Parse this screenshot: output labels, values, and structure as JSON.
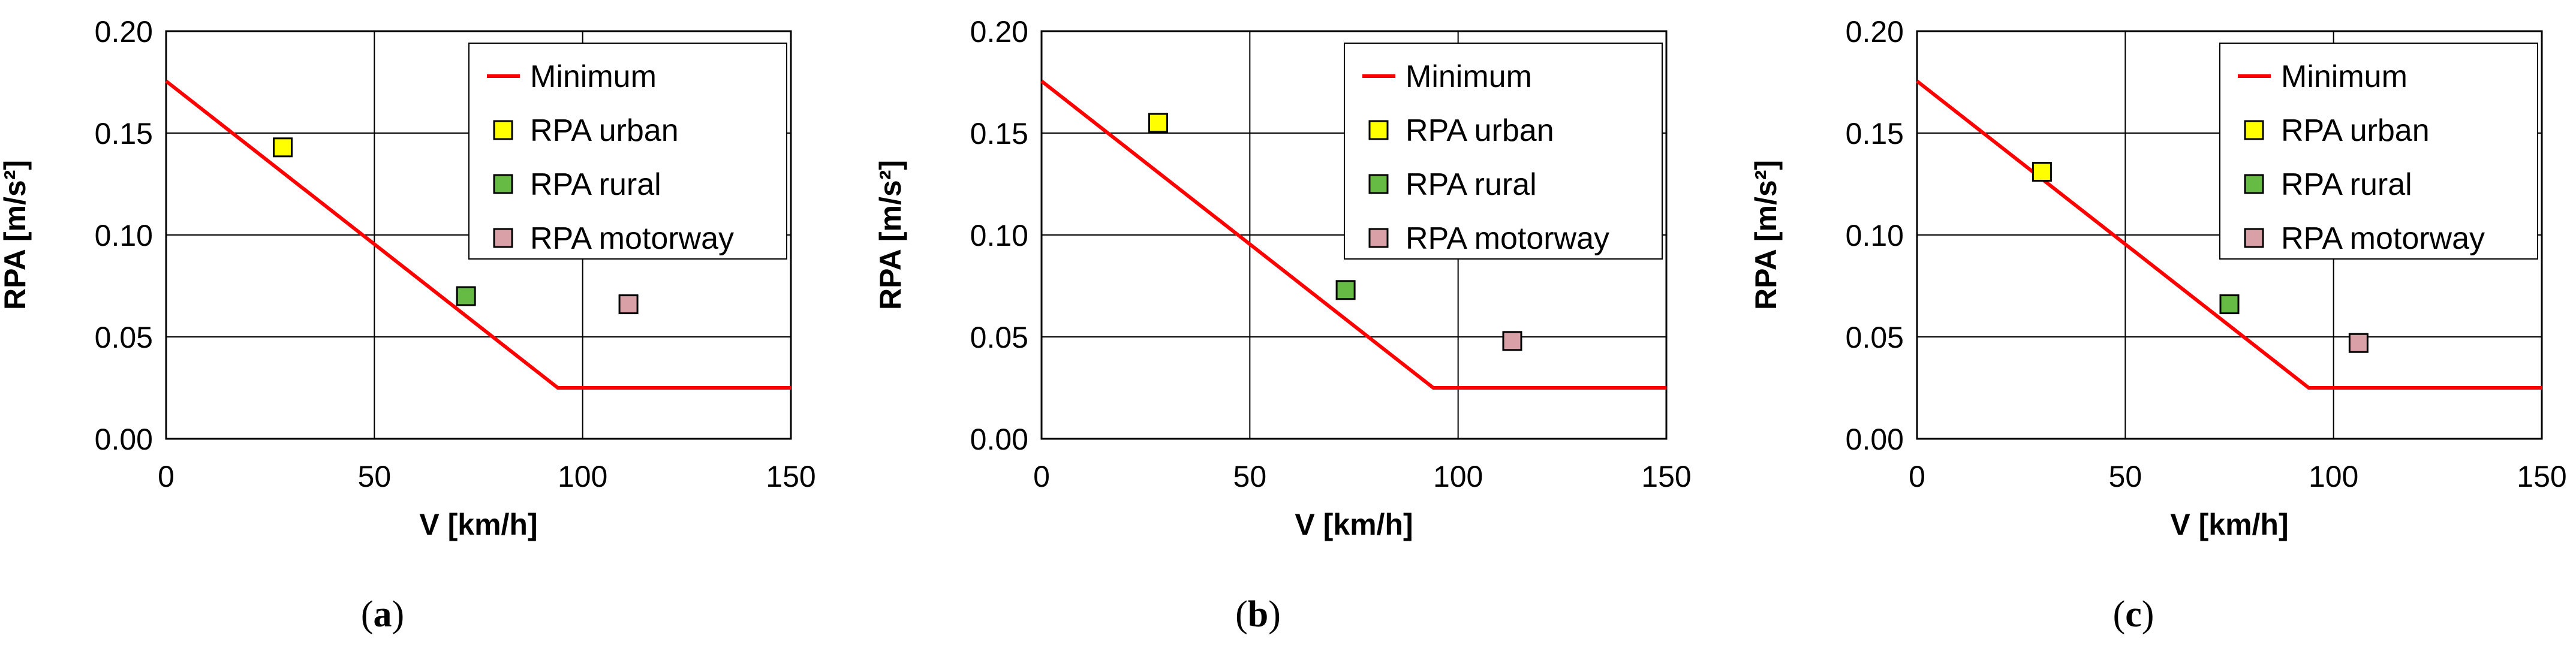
{
  "colors": {
    "minimum_line": "#ff0000",
    "rpa_urban": "#ffff00",
    "rpa_rural": "#66bb44",
    "rpa_motorway": "#d9a0a8",
    "grid": "#000000",
    "axis": "#000000"
  },
  "chart_data": [
    {
      "type": "scatter",
      "panel_label": "a",
      "xlabel": "V [km/h]",
      "ylabel": "RPA [m/s²]",
      "xlim": [
        0,
        150
      ],
      "ylim": [
        0,
        0.2
      ],
      "xticks": [
        "0",
        "50",
        "100",
        "150"
      ],
      "yticks": [
        "0.00",
        "0.05",
        "0.10",
        "0.15",
        "0.20"
      ],
      "grid": true,
      "legend_position": "top-right",
      "series": [
        {
          "name": "Minimum",
          "kind": "line",
          "x": [
            0,
            94.05,
            150
          ],
          "y": [
            0.1755,
            0.025,
            0.025
          ]
        },
        {
          "name": "RPA urban",
          "kind": "marker",
          "x": [
            28
          ],
          "y": [
            0.143
          ]
        },
        {
          "name": "RPA rural",
          "kind": "marker",
          "x": [
            72
          ],
          "y": [
            0.07
          ]
        },
        {
          "name": "RPA motorway",
          "kind": "marker",
          "x": [
            111
          ],
          "y": [
            0.066
          ]
        }
      ]
    },
    {
      "type": "scatter",
      "panel_label": "b",
      "xlabel": "V [km/h]",
      "ylabel": "RPA [m/s²]",
      "xlim": [
        0,
        150
      ],
      "ylim": [
        0,
        0.2
      ],
      "xticks": [
        "0",
        "50",
        "100",
        "150"
      ],
      "yticks": [
        "0.00",
        "0.05",
        "0.10",
        "0.15",
        "0.20"
      ],
      "grid": true,
      "legend_position": "top-right",
      "series": [
        {
          "name": "Minimum",
          "kind": "line",
          "x": [
            0,
            94.05,
            150
          ],
          "y": [
            0.1755,
            0.025,
            0.025
          ]
        },
        {
          "name": "RPA urban",
          "kind": "marker",
          "x": [
            28
          ],
          "y": [
            0.155
          ]
        },
        {
          "name": "RPA rural",
          "kind": "marker",
          "x": [
            73
          ],
          "y": [
            0.073
          ]
        },
        {
          "name": "RPA motorway",
          "kind": "marker",
          "x": [
            113
          ],
          "y": [
            0.048
          ]
        }
      ]
    },
    {
      "type": "scatter",
      "panel_label": "c",
      "xlabel": "V [km/h]",
      "ylabel": "RPA [m/s²]",
      "xlim": [
        0,
        150
      ],
      "ylim": [
        0,
        0.2
      ],
      "xticks": [
        "0",
        "50",
        "100",
        "150"
      ],
      "yticks": [
        "0.00",
        "0.05",
        "0.10",
        "0.15",
        "0.20"
      ],
      "grid": true,
      "legend_position": "top-right",
      "series": [
        {
          "name": "Minimum",
          "kind": "line",
          "x": [
            0,
            94.05,
            150
          ],
          "y": [
            0.1755,
            0.025,
            0.025
          ]
        },
        {
          "name": "RPA urban",
          "kind": "marker",
          "x": [
            30
          ],
          "y": [
            0.131
          ]
        },
        {
          "name": "RPA rural",
          "kind": "marker",
          "x": [
            75
          ],
          "y": [
            0.066
          ]
        },
        {
          "name": "RPA motorway",
          "kind": "marker",
          "x": [
            106
          ],
          "y": [
            0.047
          ]
        }
      ]
    }
  ]
}
